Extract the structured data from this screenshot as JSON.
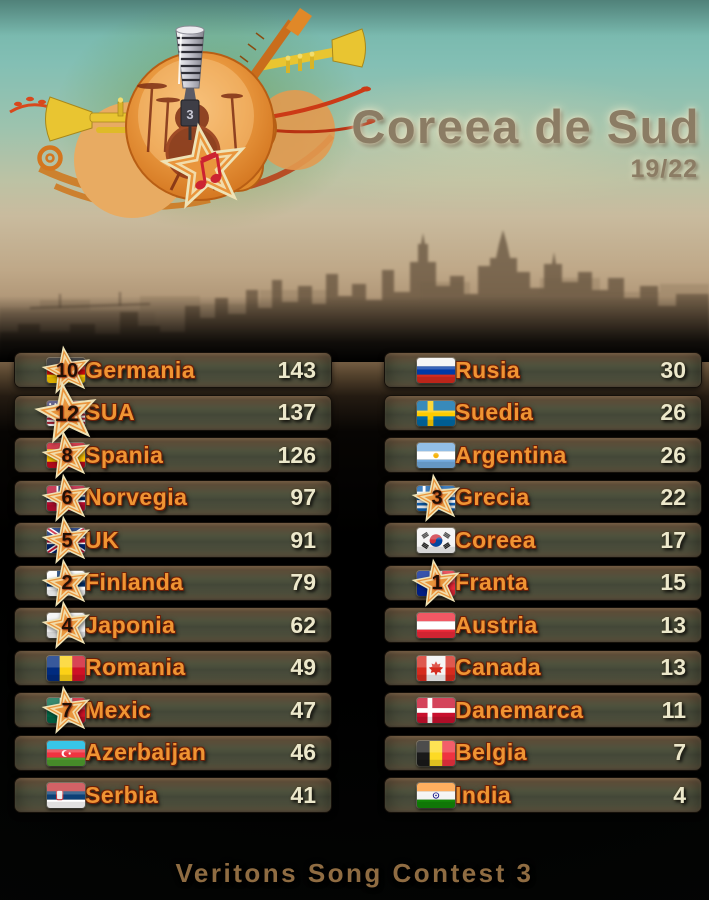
{
  "header": {
    "title": "Coreea de Sud",
    "progress": "19/22"
  },
  "footer": {
    "label": "Veritons Song Contest 3"
  },
  "logo": {
    "icons": [
      "microphone-icon",
      "drum-kit-icon",
      "guitar-icon",
      "trumpet-icon",
      "star-icon",
      "music-note-icon",
      "ring-icon",
      "flourish-icon"
    ],
    "mic_number": "3"
  },
  "theme": {
    "accent_orange": "#ef9433",
    "score_text": "#ece8cb",
    "title_text": "#8b7c64",
    "footer_text": "#8f6c42",
    "row_top": "#8a6c4c",
    "row_mid": "#4d5140",
    "star_fill": "#e9953c",
    "star_border": "#efe3b6",
    "sky_teal": "#7fbfb3",
    "haze_brown": "#9d8265"
  },
  "scoreboard": {
    "left": [
      {
        "country": "Germania",
        "score": "143",
        "points": "10",
        "flag": "de"
      },
      {
        "country": "SUA",
        "score": "137",
        "points": "12",
        "flag": "us"
      },
      {
        "country": "Spania",
        "score": "126",
        "points": "8",
        "flag": "es"
      },
      {
        "country": "Norvegia",
        "score": "97",
        "points": "6",
        "flag": "no"
      },
      {
        "country": "UK",
        "score": "91",
        "points": "5",
        "flag": "gb"
      },
      {
        "country": "Finlanda",
        "score": "79",
        "points": "2",
        "flag": "fi"
      },
      {
        "country": "Japonia",
        "score": "62",
        "points": "4",
        "flag": "jp"
      },
      {
        "country": "Romania",
        "score": "49",
        "flag": "ro"
      },
      {
        "country": "Mexic",
        "score": "47",
        "points": "7",
        "flag": "mx"
      },
      {
        "country": "Azerbaijan",
        "score": "46",
        "flag": "az"
      },
      {
        "country": "Serbia",
        "score": "41",
        "flag": "rs"
      }
    ],
    "right": [
      {
        "country": "Rusia",
        "score": "30",
        "flag": "ru"
      },
      {
        "country": "Suedia",
        "score": "26",
        "flag": "se"
      },
      {
        "country": "Argentina",
        "score": "26",
        "flag": "ar"
      },
      {
        "country": "Grecia",
        "score": "22",
        "points": "3",
        "flag": "gr"
      },
      {
        "country": "Coreea",
        "score": "17",
        "flag": "kr"
      },
      {
        "country": "Franta",
        "score": "15",
        "points": "1",
        "flag": "fr"
      },
      {
        "country": "Austria",
        "score": "13",
        "flag": "at"
      },
      {
        "country": "Canada",
        "score": "13",
        "flag": "ca"
      },
      {
        "country": "Danemarca",
        "score": "11",
        "flag": "dk"
      },
      {
        "country": "Belgia",
        "score": "7",
        "flag": "be"
      },
      {
        "country": "India",
        "score": "4",
        "flag": "in"
      }
    ]
  }
}
